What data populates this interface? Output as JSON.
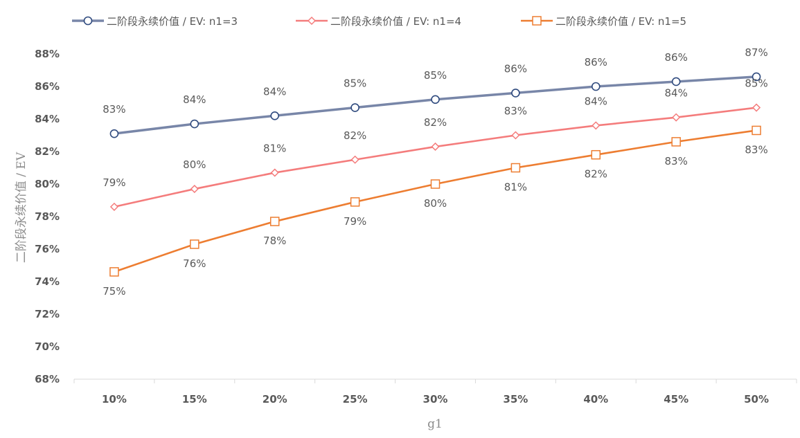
{
  "chart_data": {
    "type": "line",
    "xlabel": "g1",
    "ylabel": "二阶段永续价值 / EV",
    "categories": [
      "10%",
      "15%",
      "20%",
      "25%",
      "30%",
      "35%",
      "40%",
      "45%",
      "50%"
    ],
    "ylim": [
      0.68,
      0.88
    ],
    "y_ticks": [
      "68%",
      "70%",
      "72%",
      "74%",
      "76%",
      "78%",
      "80%",
      "82%",
      "84%",
      "86%",
      "88%"
    ],
    "grid": false,
    "legend_position": "top",
    "series": [
      {
        "name": "二阶段永续价值 / EV: n1=3",
        "color": "#7886a8",
        "marker": "circle",
        "values": [
          0.831,
          0.837,
          0.842,
          0.847,
          0.852,
          0.856,
          0.86,
          0.863,
          0.866
        ],
        "labels": [
          "83%",
          "84%",
          "84%",
          "85%",
          "85%",
          "86%",
          "86%",
          "86%",
          "87%"
        ]
      },
      {
        "name": "二阶段永续价值 / EV: n1=4",
        "color": "#f47c7c",
        "marker": "diamond",
        "values": [
          0.786,
          0.797,
          0.807,
          0.815,
          0.823,
          0.83,
          0.836,
          0.841,
          0.847
        ],
        "labels": [
          "79%",
          "80%",
          "81%",
          "82%",
          "82%",
          "83%",
          "84%",
          "84%",
          "85%"
        ]
      },
      {
        "name": "二阶段永续价值 / EV: n1=5",
        "color": "#ed7d31",
        "marker": "square",
        "values": [
          0.746,
          0.763,
          0.777,
          0.789,
          0.8,
          0.81,
          0.818,
          0.826,
          0.833
        ],
        "labels": [
          "75%",
          "76%",
          "78%",
          "79%",
          "80%",
          "81%",
          "82%",
          "83%",
          "83%"
        ]
      }
    ]
  }
}
